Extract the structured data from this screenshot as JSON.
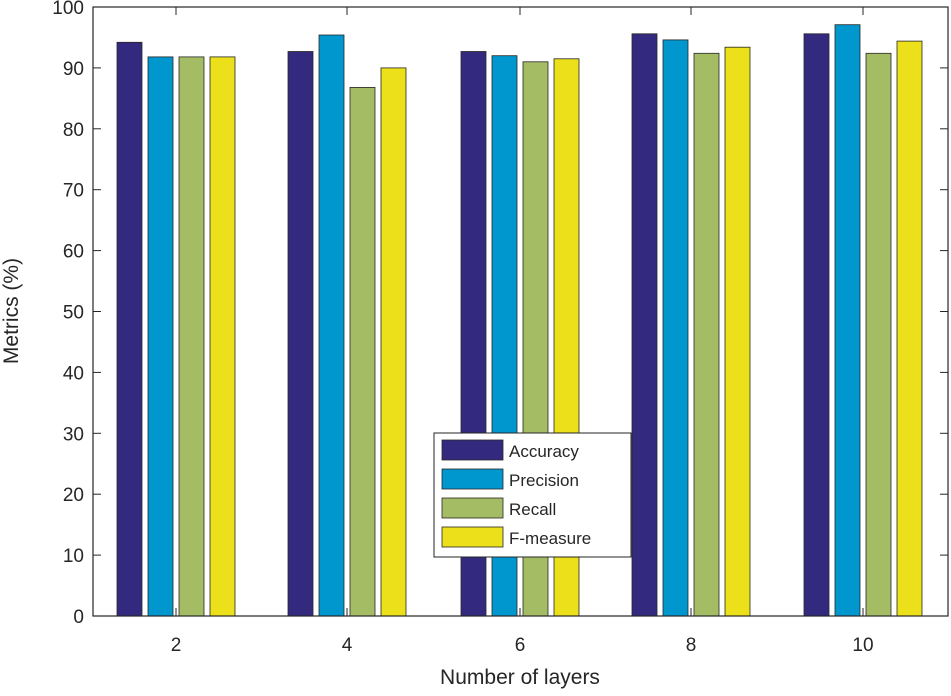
{
  "chart_data": {
    "type": "bar",
    "title": "",
    "xlabel": "Number of layers",
    "ylabel": "Metrics (%)",
    "categories": [
      "2",
      "4",
      "6",
      "8",
      "10"
    ],
    "ylim": [
      0,
      100
    ],
    "yticks": [
      "0",
      "10",
      "20",
      "30",
      "40",
      "50",
      "60",
      "70",
      "80",
      "90",
      "100"
    ],
    "grid": false,
    "legend_position": "center-bottom",
    "series": [
      {
        "name": "Accuracy",
        "color": "#33297f",
        "values": [
          94.2,
          92.7,
          92.7,
          95.6,
          95.6
        ]
      },
      {
        "name": "Precision",
        "color": "#0097cf",
        "values": [
          91.8,
          95.4,
          92.0,
          94.6,
          97.1
        ]
      },
      {
        "name": "Recall",
        "color": "#a4bd65",
        "values": [
          91.8,
          86.8,
          91.0,
          92.4,
          92.4
        ]
      },
      {
        "name": "F-measure",
        "color": "#ebe01a",
        "values": [
          91.8,
          90.0,
          91.5,
          93.4,
          94.4
        ]
      }
    ]
  }
}
